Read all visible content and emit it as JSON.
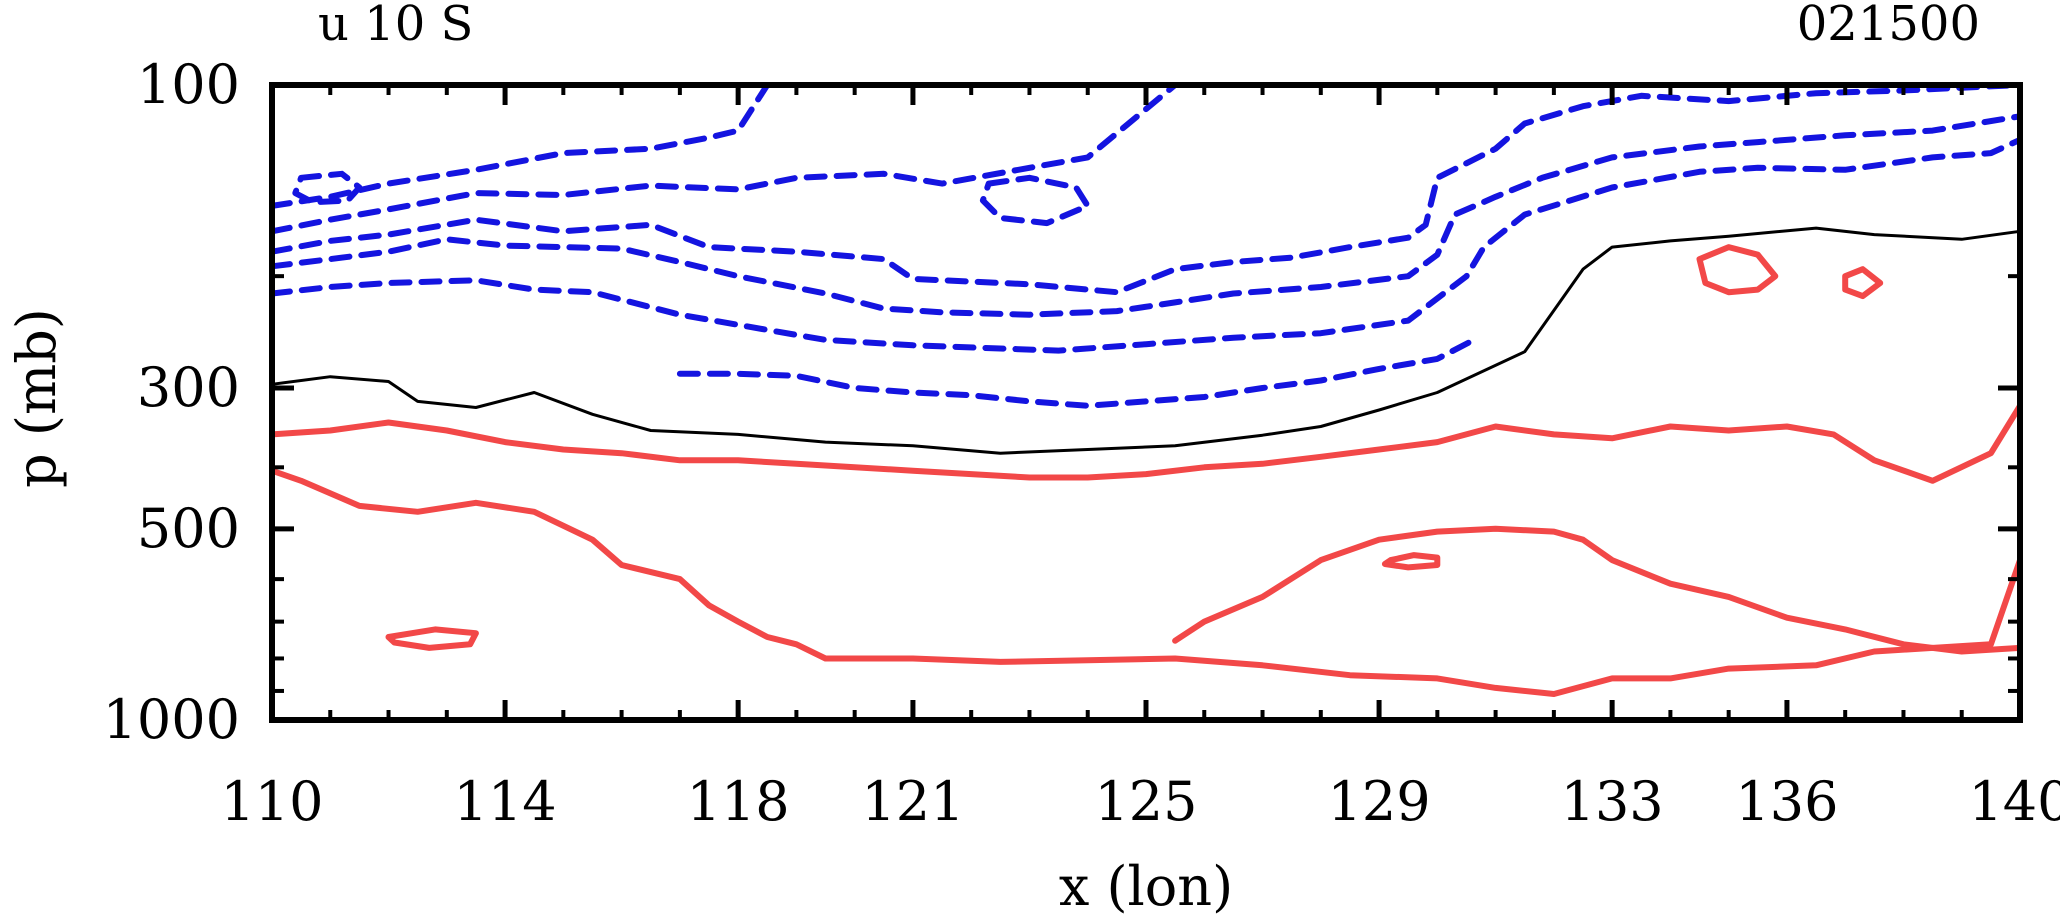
{
  "chart_data": {
    "type": "contour",
    "title_left": "u 10 S",
    "title_right": "021500",
    "xlabel": "x (lon)",
    "ylabel": "p (mb)",
    "xlim": [
      110,
      140
    ],
    "ylim": [
      1000,
      100
    ],
    "yscale": "log",
    "x_ticks": [
      110,
      114,
      118,
      121,
      125,
      129,
      133,
      136,
      140
    ],
    "x_tick_labels": [
      "110",
      "114",
      "118",
      "121",
      "125",
      "129",
      "133",
      "136",
      "140"
    ],
    "y_ticks": [
      100,
      300,
      500,
      1000
    ],
    "y_tick_labels": [
      "100",
      "300",
      "500",
      "1000"
    ],
    "grid": false,
    "colors": {
      "positive": "#f24848",
      "negative": "#1414e0",
      "zero": "#000000"
    },
    "contours": [
      {
        "level": "negative",
        "style": "dashed",
        "color": "negative",
        "points": [
          [
            110,
            155
          ],
          [
            111,
            150
          ],
          [
            112,
            143
          ],
          [
            113.5,
            136
          ],
          [
            115,
            128
          ],
          [
            116.5,
            126
          ],
          [
            117.5,
            121
          ],
          [
            118,
            118
          ],
          [
            118.5,
            100
          ]
        ]
      },
      {
        "level": "negative",
        "style": "dashed",
        "color": "negative",
        "points": [
          [
            110,
            170
          ],
          [
            111,
            163
          ],
          [
            112,
            157
          ],
          [
            113.5,
            148
          ],
          [
            115,
            149
          ],
          [
            116.5,
            144
          ],
          [
            118,
            146
          ],
          [
            119,
            140
          ],
          [
            120.5,
            138
          ],
          [
            121.5,
            143
          ],
          [
            123,
            135
          ],
          [
            124,
            130
          ],
          [
            125.5,
            100
          ]
        ]
      },
      {
        "level": "negative",
        "style": "dashed",
        "color": "negative",
        "points": [
          [
            110,
            183
          ],
          [
            111,
            176
          ],
          [
            112,
            172
          ],
          [
            113.5,
            163
          ],
          [
            115,
            170
          ],
          [
            116.5,
            166
          ],
          [
            117.5,
            180
          ],
          [
            119,
            183
          ],
          [
            120.5,
            188
          ],
          [
            121,
            202
          ],
          [
            123,
            206
          ],
          [
            124.5,
            212
          ],
          [
            125.5,
            195
          ],
          [
            126.5,
            190
          ],
          [
            127.5,
            187
          ],
          [
            128.5,
            180
          ],
          [
            129.5,
            174
          ],
          [
            129.8,
            166
          ],
          [
            130,
            140
          ],
          [
            131,
            126
          ],
          [
            131.5,
            115
          ],
          [
            132.5,
            108
          ],
          [
            133.5,
            104
          ],
          [
            135,
            106
          ],
          [
            136.5,
            103
          ],
          [
            138,
            102
          ],
          [
            139,
            101
          ],
          [
            140,
            100
          ]
        ]
      },
      {
        "level": "negative",
        "style": "dashed",
        "color": "negative",
        "points": [
          [
            110,
            193
          ],
          [
            111,
            188
          ],
          [
            112,
            183
          ],
          [
            113,
            175
          ],
          [
            114,
            179
          ],
          [
            115,
            180
          ],
          [
            116,
            181
          ],
          [
            117,
            190
          ],
          [
            118,
            200
          ],
          [
            119.5,
            213
          ],
          [
            120.5,
            225
          ],
          [
            121.5,
            228
          ],
          [
            123,
            230
          ],
          [
            124.5,
            227
          ],
          [
            125.5,
            220
          ],
          [
            126.5,
            213
          ],
          [
            128,
            208
          ],
          [
            129.5,
            200
          ],
          [
            130,
            185
          ],
          [
            130.3,
            160
          ],
          [
            131,
            150
          ],
          [
            131.8,
            140
          ],
          [
            133,
            130
          ],
          [
            134.5,
            125
          ],
          [
            135.5,
            123
          ],
          [
            137,
            120
          ],
          [
            138.5,
            118
          ],
          [
            140,
            112
          ]
        ]
      },
      {
        "level": "negative",
        "style": "dashed",
        "color": "negative",
        "points": [
          [
            110,
            213
          ],
          [
            111,
            208
          ],
          [
            112,
            205
          ],
          [
            113.5,
            203
          ],
          [
            114.5,
            210
          ],
          [
            115.5,
            212
          ],
          [
            117,
            230
          ],
          [
            118.5,
            243
          ],
          [
            119.5,
            252
          ],
          [
            121,
            257
          ],
          [
            122.5,
            260
          ],
          [
            123.5,
            262
          ],
          [
            125,
            256
          ],
          [
            126.5,
            250
          ],
          [
            128,
            246
          ],
          [
            129.5,
            235
          ],
          [
            130.5,
            200
          ],
          [
            130.8,
            180
          ],
          [
            131.5,
            160
          ],
          [
            133,
            145
          ],
          [
            134.5,
            137
          ],
          [
            135.5,
            135
          ],
          [
            137,
            136
          ],
          [
            138.5,
            130
          ],
          [
            139.5,
            128
          ],
          [
            140,
            122
          ]
        ]
      },
      {
        "level": "negative",
        "style": "dashed",
        "color": "negative",
        "points": [
          [
            117,
            285
          ],
          [
            118,
            285
          ],
          [
            119,
            287
          ],
          [
            120,
            300
          ],
          [
            121,
            305
          ],
          [
            122,
            308
          ],
          [
            123,
            315
          ],
          [
            124,
            320
          ],
          [
            125,
            315
          ],
          [
            126,
            310
          ],
          [
            127,
            300
          ],
          [
            128,
            292
          ],
          [
            129,
            280
          ],
          [
            130,
            270
          ],
          [
            130.7,
            250
          ]
        ]
      },
      {
        "level": "negative",
        "style": "dashed",
        "color": "negative",
        "closed": true,
        "points": [
          [
            110.5,
            140
          ],
          [
            111.2,
            138
          ],
          [
            111.5,
            145
          ],
          [
            111.3,
            152
          ],
          [
            110.7,
            153
          ],
          [
            110.4,
            148
          ]
        ]
      },
      {
        "level": "negative",
        "style": "dashed",
        "color": "negative",
        "closed": true,
        "points": [
          [
            122.3,
            143
          ],
          [
            123,
            140
          ],
          [
            123.8,
            145
          ],
          [
            124,
            155
          ],
          [
            123.3,
            165
          ],
          [
            122.5,
            162
          ],
          [
            122.2,
            152
          ]
        ]
      },
      {
        "level": "zero",
        "style": "solid",
        "color": "zero",
        "points": [
          [
            110,
            296
          ],
          [
            111,
            288
          ],
          [
            112,
            293
          ],
          [
            112.5,
            315
          ],
          [
            113.5,
            322
          ],
          [
            114.5,
            305
          ],
          [
            115.5,
            330
          ],
          [
            116.5,
            350
          ],
          [
            118,
            355
          ],
          [
            119.5,
            365
          ],
          [
            121,
            370
          ],
          [
            122.5,
            380
          ],
          [
            124,
            375
          ],
          [
            125.5,
            370
          ],
          [
            127,
            356
          ],
          [
            128,
            345
          ],
          [
            129,
            325
          ],
          [
            130,
            305
          ],
          [
            131.5,
            263
          ],
          [
            132.5,
            195
          ],
          [
            133,
            180
          ],
          [
            134,
            176
          ],
          [
            135,
            173
          ],
          [
            136.5,
            168
          ],
          [
            137.5,
            172
          ],
          [
            139,
            175
          ],
          [
            140,
            170
          ]
        ]
      },
      {
        "level": "positive",
        "style": "solid",
        "color": "positive",
        "points": [
          [
            110,
            355
          ],
          [
            111,
            350
          ],
          [
            112,
            340
          ],
          [
            113,
            350
          ],
          [
            114,
            365
          ],
          [
            115,
            375
          ],
          [
            116,
            380
          ],
          [
            117,
            390
          ],
          [
            118,
            390
          ],
          [
            119,
            395
          ],
          [
            120,
            400
          ],
          [
            121,
            405
          ],
          [
            122,
            410
          ],
          [
            123,
            415
          ],
          [
            124,
            415
          ],
          [
            125,
            410
          ],
          [
            126,
            400
          ],
          [
            127,
            395
          ],
          [
            128,
            385
          ],
          [
            129,
            375
          ],
          [
            130,
            365
          ],
          [
            131,
            345
          ],
          [
            132,
            355
          ],
          [
            133,
            360
          ],
          [
            134,
            345
          ],
          [
            135,
            350
          ],
          [
            136,
            345
          ],
          [
            136.8,
            355
          ],
          [
            137.5,
            390
          ],
          [
            138.5,
            420
          ],
          [
            139.5,
            380
          ],
          [
            140,
            320
          ]
        ]
      },
      {
        "level": "positive",
        "style": "solid",
        "color": "positive",
        "points": [
          [
            110,
            405
          ],
          [
            110.5,
            420
          ],
          [
            111.5,
            460
          ],
          [
            112.5,
            470
          ],
          [
            113.5,
            455
          ],
          [
            114.5,
            470
          ],
          [
            115.5,
            520
          ],
          [
            116,
            570
          ],
          [
            117,
            600
          ],
          [
            117.5,
            660
          ],
          [
            118,
            700
          ],
          [
            118.5,
            740
          ],
          [
            119,
            760
          ],
          [
            119.5,
            800
          ],
          [
            121,
            800
          ],
          [
            122.5,
            810
          ],
          [
            124,
            805
          ],
          [
            125.5,
            800
          ],
          [
            127,
            820
          ],
          [
            128.5,
            850
          ],
          [
            130,
            860
          ],
          [
            131,
            890
          ],
          [
            132,
            910
          ],
          [
            133,
            860
          ],
          [
            134,
            860
          ],
          [
            135,
            830
          ],
          [
            136.5,
            820
          ],
          [
            137.5,
            780
          ],
          [
            139.5,
            760
          ],
          [
            140,
            560
          ]
        ]
      },
      {
        "level": "positive",
        "style": "solid",
        "color": "positive",
        "points": [
          [
            125.5,
            750
          ],
          [
            126,
            700
          ],
          [
            127,
            640
          ],
          [
            128,
            560
          ],
          [
            129,
            520
          ],
          [
            130,
            505
          ],
          [
            131,
            500
          ],
          [
            132,
            505
          ],
          [
            132.5,
            520
          ],
          [
            133,
            560
          ],
          [
            134,
            610
          ],
          [
            135,
            640
          ],
          [
            136,
            690
          ],
          [
            137,
            720
          ],
          [
            138,
            760
          ],
          [
            139,
            780
          ],
          [
            140,
            770
          ]
        ]
      },
      {
        "level": "positive",
        "style": "solid",
        "color": "positive",
        "closed": true,
        "points": [
          [
            134.5,
            188
          ],
          [
            135,
            180
          ],
          [
            135.5,
            185
          ],
          [
            135.8,
            200
          ],
          [
            135.5,
            210
          ],
          [
            135,
            212
          ],
          [
            134.6,
            205
          ]
        ]
      },
      {
        "level": "positive",
        "style": "solid",
        "color": "positive",
        "closed": true,
        "points": [
          [
            137,
            200
          ],
          [
            137.3,
            195
          ],
          [
            137.6,
            205
          ],
          [
            137.3,
            215
          ],
          [
            137,
            210
          ]
        ]
      },
      {
        "level": "positive",
        "style": "solid",
        "color": "positive",
        "closed": true,
        "points": [
          [
            129.2,
            560
          ],
          [
            129.6,
            550
          ],
          [
            130,
            555
          ],
          [
            130,
            570
          ],
          [
            129.5,
            575
          ],
          [
            129.1,
            568
          ]
        ]
      },
      {
        "level": "positive",
        "style": "solid",
        "color": "positive",
        "closed": true,
        "points": [
          [
            112,
            740
          ],
          [
            112.8,
            720
          ],
          [
            113.5,
            730
          ],
          [
            113.4,
            760
          ],
          [
            112.7,
            770
          ],
          [
            112.1,
            755
          ]
        ]
      }
    ]
  }
}
